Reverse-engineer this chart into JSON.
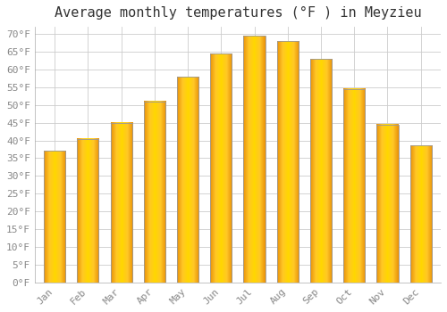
{
  "title": "Average monthly temperatures (°F ) in Meyzieu",
  "months": [
    "Jan",
    "Feb",
    "Mar",
    "Apr",
    "May",
    "Jun",
    "Jul",
    "Aug",
    "Sep",
    "Oct",
    "Nov",
    "Dec"
  ],
  "values": [
    37,
    40.5,
    45,
    51,
    58,
    64.5,
    69.5,
    68,
    63,
    54.5,
    44.5,
    38.5
  ],
  "bar_color_center": "#FFD700",
  "bar_color_edge": "#FFA500",
  "bar_border_color": "#999999",
  "background_color": "#FFFFFF",
  "plot_bg_color": "#FFFFFF",
  "grid_color": "#CCCCCC",
  "ylim": [
    0,
    72
  ],
  "ytick_step": 5,
  "title_fontsize": 11,
  "tick_fontsize": 8,
  "tick_color": "#888888",
  "font_family": "monospace"
}
